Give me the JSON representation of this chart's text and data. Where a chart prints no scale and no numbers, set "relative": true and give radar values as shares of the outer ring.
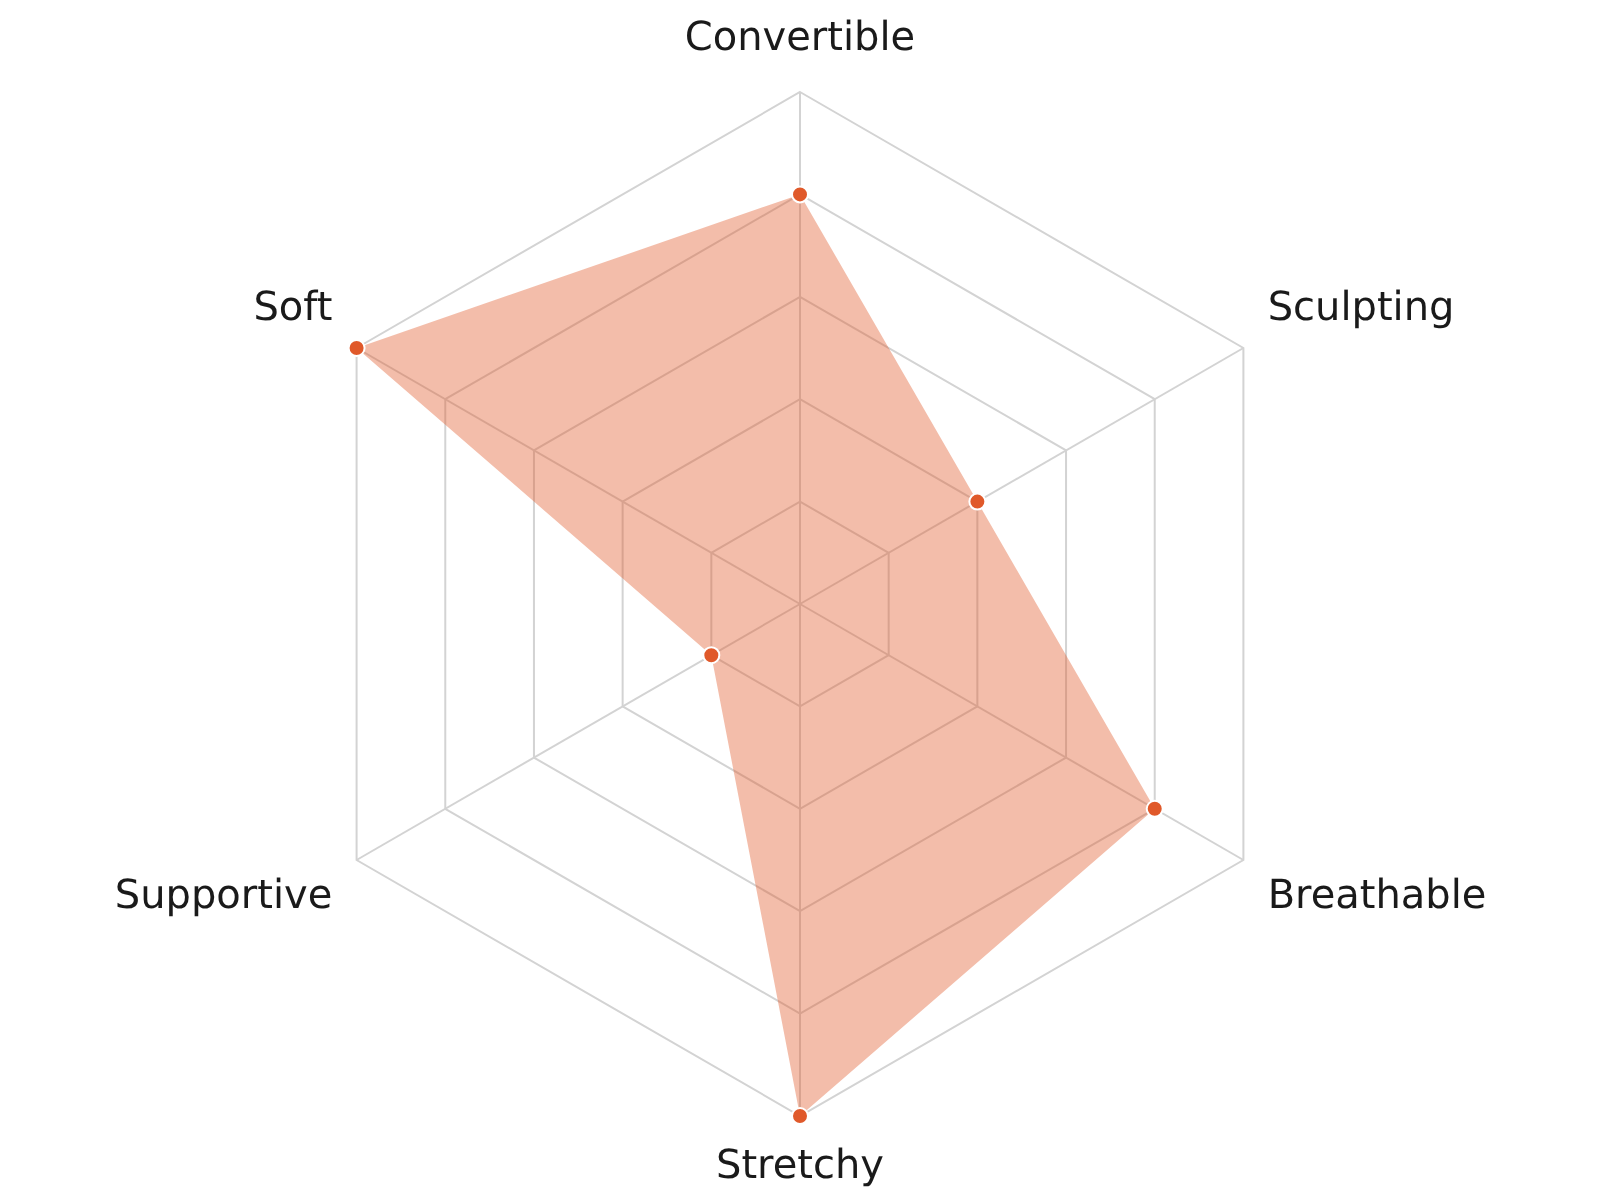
{
  "chart_data": {
    "type": "radar",
    "relative": true,
    "categories": [
      "Convertible",
      "Sculpting",
      "Breathable",
      "Stretchy",
      "Supportive",
      "Soft"
    ],
    "series": [
      {
        "color": "#e0592a",
        "values": [
          0.8,
          0.4,
          0.8,
          1,
          0.2,
          1
        ]
      }
    ],
    "grid": true,
    "legend": false,
    "marker": "circle"
  }
}
